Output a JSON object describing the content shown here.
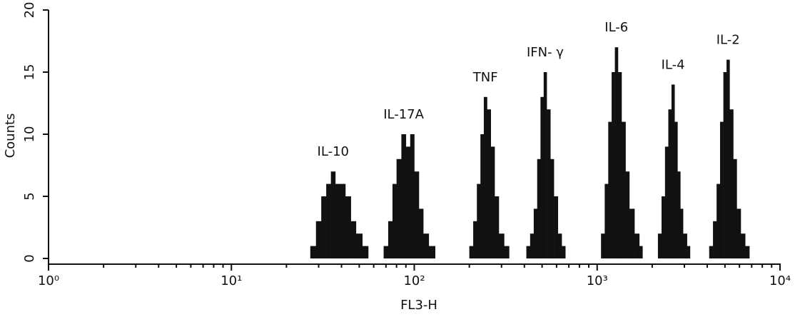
{
  "chart_data": {
    "type": "histogram",
    "xlabel": "FL3-H",
    "ylabel": "Counts",
    "xscale": "log",
    "color": "#111111",
    "xlim": [
      1,
      10000
    ],
    "ylim": [
      0,
      20
    ],
    "xticks": [
      {
        "value": 1,
        "label": "10⁰"
      },
      {
        "value": 10,
        "label": "10¹"
      },
      {
        "value": 100,
        "label": "10²"
      },
      {
        "value": 1000,
        "label": "10³"
      },
      {
        "value": 10000,
        "label": "10⁴"
      }
    ],
    "xminorticks": [
      2,
      3,
      4,
      5,
      6,
      7,
      8,
      9,
      20,
      30,
      40,
      50,
      60,
      70,
      80,
      90,
      200,
      300,
      400,
      500,
      600,
      700,
      800,
      900,
      2000,
      3000,
      4000,
      5000,
      6000,
      7000,
      8000,
      9000
    ],
    "yticks": [
      0,
      5,
      10,
      15,
      20
    ],
    "series": [
      {
        "name": "IL-10",
        "bins": [
          27,
          29,
          31,
          33,
          35,
          37,
          39,
          42,
          45,
          48,
          52,
          56
        ],
        "values": [
          1,
          3,
          5,
          6,
          7,
          6,
          6,
          5,
          3,
          2,
          1
        ]
      },
      {
        "name": "IL-17A",
        "bins": [
          68,
          72,
          76,
          80,
          85,
          90,
          95,
          100,
          106,
          112,
          120,
          130
        ],
        "values": [
          1,
          3,
          6,
          8,
          10,
          9,
          10,
          7,
          4,
          2,
          1
        ]
      },
      {
        "name": "TNF",
        "bins": [
          200,
          210,
          220,
          230,
          240,
          250,
          262,
          275,
          290,
          310,
          330
        ],
        "values": [
          1,
          3,
          6,
          10,
          13,
          12,
          9,
          5,
          2,
          1
        ]
      },
      {
        "name": "IFN- γ",
        "bins": [
          410,
          430,
          450,
          470,
          490,
          510,
          530,
          555,
          580,
          610,
          640,
          670
        ],
        "values": [
          1,
          2,
          4,
          8,
          13,
          15,
          12,
          8,
          5,
          2,
          1
        ]
      },
      {
        "name": "IL-6",
        "bins": [
          1050,
          1100,
          1150,
          1200,
          1250,
          1300,
          1360,
          1430,
          1500,
          1600,
          1700,
          1770
        ],
        "values": [
          2,
          6,
          11,
          15,
          17,
          15,
          11,
          7,
          4,
          2,
          1
        ]
      },
      {
        "name": "IL-4",
        "bins": [
          2150,
          2250,
          2350,
          2450,
          2550,
          2650,
          2750,
          2850,
          2950,
          3100,
          3220
        ],
        "values": [
          2,
          5,
          9,
          12,
          14,
          11,
          7,
          4,
          2,
          1
        ]
      },
      {
        "name": "IL-2",
        "bins": [
          4100,
          4300,
          4500,
          4700,
          4900,
          5100,
          5300,
          5550,
          5800,
          6100,
          6450,
          6800
        ],
        "values": [
          1,
          3,
          6,
          11,
          15,
          16,
          12,
          8,
          4,
          2,
          1
        ]
      }
    ]
  }
}
